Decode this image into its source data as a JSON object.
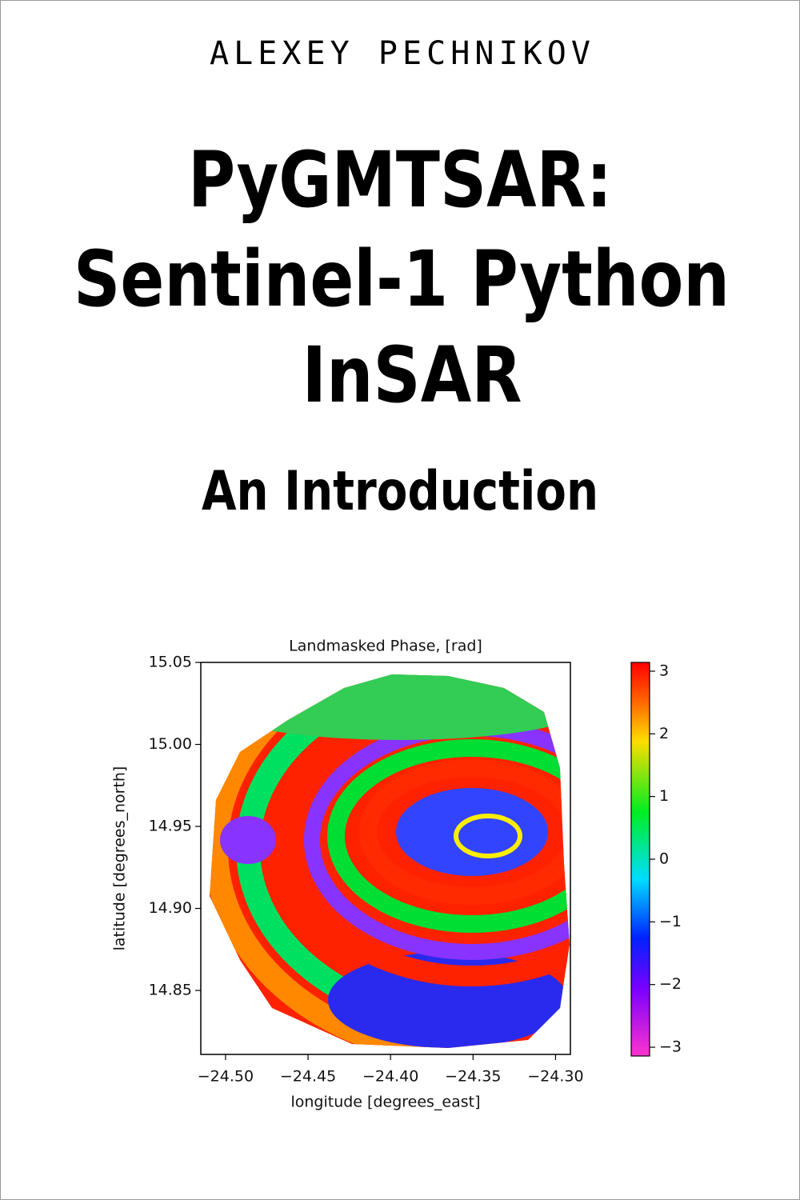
{
  "cover": {
    "author": "ALEXEY PECHNIKOV",
    "title": [
      "PyGMTSAR:",
      "Sentinel-1 Python",
      "InSAR"
    ],
    "subtitle": "An Introduction"
  },
  "chart_data": {
    "type": "image",
    "title": "Landmasked Phase, [rad]",
    "xlabel": "longitude [degrees_east]",
    "ylabel": "latitude [degrees_north]",
    "xlim": [
      -24.515,
      -24.291
    ],
    "ylim": [
      14.811,
      15.05
    ],
    "xticks": [
      {
        "value": -24.5,
        "label": "−24.50"
      },
      {
        "value": -24.45,
        "label": "−24.45"
      },
      {
        "value": -24.4,
        "label": "−24.40"
      },
      {
        "value": -24.35,
        "label": "−24.35"
      },
      {
        "value": -24.3,
        "label": "−24.30"
      }
    ],
    "yticks": [
      14.85,
      {
        "value": 14.9,
        "label": "14.90"
      },
      14.95,
      {
        "value": 15.0,
        "label": "15.00"
      },
      15.05
    ],
    "colorbar": {
      "lim": [
        -3.14,
        3.14
      ],
      "ticks": [
        {
          "value": -3,
          "label": "−3"
        },
        {
          "value": -2,
          "label": "−2"
        },
        {
          "value": -1,
          "label": "−1"
        },
        0,
        1,
        2,
        3
      ]
    }
  }
}
